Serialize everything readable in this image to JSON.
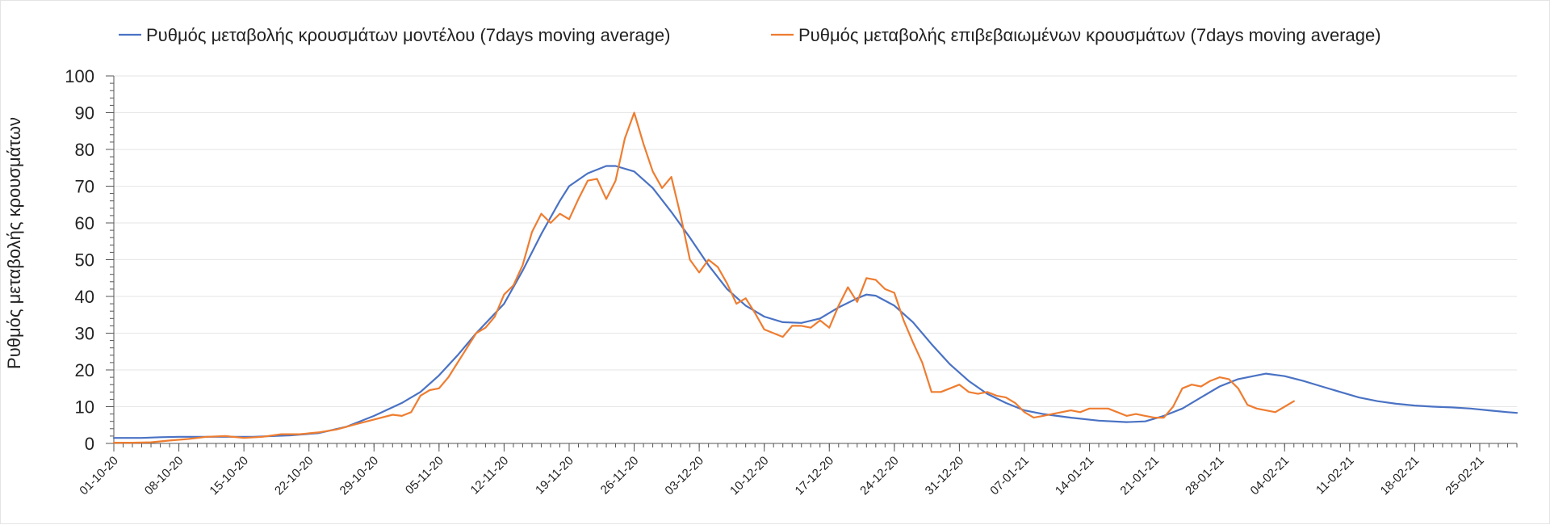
{
  "chart_data": {
    "type": "line",
    "title": "",
    "xlabel": "",
    "ylabel": "Ρυθμός μεταβολής κρουσμάτων",
    "ylim": [
      0,
      100
    ],
    "yticks": [
      0,
      10,
      20,
      30,
      40,
      50,
      60,
      70,
      80,
      90,
      100
    ],
    "grid": true,
    "legend_position": "top",
    "x_start": "2020-10-01",
    "x_end": "2021-03-01",
    "xtick_labels": [
      "01-10-20",
      "08-10-20",
      "15-10-20",
      "22-10-20",
      "29-10-20",
      "05-11-20",
      "12-11-20",
      "19-11-20",
      "26-11-20",
      "03-12-20",
      "10-12-20",
      "17-12-20",
      "24-12-20",
      "31-12-20",
      "07-01-21",
      "14-01-21",
      "21-01-21",
      "28-01-21",
      "04-02-21",
      "11-02-21",
      "18-02-21",
      "25-02-21"
    ],
    "series": [
      {
        "name": "Ρυθμός μεταβολής κρουσμάτων μοντέλου (7days moving average)",
        "color": "#4a72c4",
        "points": [
          [
            "2020-10-01",
            1.5
          ],
          [
            "2020-10-04",
            1.5
          ],
          [
            "2020-10-06",
            1.7
          ],
          [
            "2020-10-08",
            1.8
          ],
          [
            "2020-10-12",
            1.8
          ],
          [
            "2020-10-16",
            1.8
          ],
          [
            "2020-10-20",
            2.2
          ],
          [
            "2020-10-23",
            2.8
          ],
          [
            "2020-10-26",
            4.5
          ],
          [
            "2020-10-29",
            7.5
          ],
          [
            "2020-11-01",
            11.0
          ],
          [
            "2020-11-03",
            14.0
          ],
          [
            "2020-11-05",
            18.5
          ],
          [
            "2020-11-07",
            24.0
          ],
          [
            "2020-11-09",
            30.0
          ],
          [
            "2020-11-12",
            38.0
          ],
          [
            "2020-11-14",
            47.0
          ],
          [
            "2020-11-16",
            57.0
          ],
          [
            "2020-11-18",
            66.0
          ],
          [
            "2020-11-19",
            70.0
          ],
          [
            "2020-11-21",
            73.5
          ],
          [
            "2020-11-23",
            75.5
          ],
          [
            "2020-11-24",
            75.5
          ],
          [
            "2020-11-26",
            74.0
          ],
          [
            "2020-11-28",
            69.5
          ],
          [
            "2020-11-30",
            63.0
          ],
          [
            "2020-12-02",
            56.0
          ],
          [
            "2020-12-04",
            48.5
          ],
          [
            "2020-12-06",
            42.0
          ],
          [
            "2020-12-08",
            37.5
          ],
          [
            "2020-12-10",
            34.5
          ],
          [
            "2020-12-12",
            33.0
          ],
          [
            "2020-12-14",
            32.8
          ],
          [
            "2020-12-16",
            34.0
          ],
          [
            "2020-12-18",
            37.0
          ],
          [
            "2020-12-20",
            39.5
          ],
          [
            "2020-12-21",
            40.5
          ],
          [
            "2020-12-22",
            40.2
          ],
          [
            "2020-12-24",
            37.5
          ],
          [
            "2020-12-26",
            33.0
          ],
          [
            "2020-12-28",
            27.0
          ],
          [
            "2020-12-30",
            21.5
          ],
          [
            "2021-01-01",
            17.0
          ],
          [
            "2021-01-03",
            13.5
          ],
          [
            "2021-01-05",
            11.0
          ],
          [
            "2021-01-07",
            9.0
          ],
          [
            "2021-01-09",
            8.0
          ],
          [
            "2021-01-12",
            7.0
          ],
          [
            "2021-01-15",
            6.2
          ],
          [
            "2021-01-18",
            5.8
          ],
          [
            "2021-01-20",
            6.0
          ],
          [
            "2021-01-22",
            7.5
          ],
          [
            "2021-01-24",
            9.5
          ],
          [
            "2021-01-26",
            12.5
          ],
          [
            "2021-01-28",
            15.5
          ],
          [
            "2021-01-30",
            17.5
          ],
          [
            "2021-02-01",
            18.5
          ],
          [
            "2021-02-02",
            19.0
          ],
          [
            "2021-02-04",
            18.3
          ],
          [
            "2021-02-06",
            17.0
          ],
          [
            "2021-02-08",
            15.5
          ],
          [
            "2021-02-10",
            14.0
          ],
          [
            "2021-02-12",
            12.5
          ],
          [
            "2021-02-14",
            11.5
          ],
          [
            "2021-02-16",
            10.8
          ],
          [
            "2021-02-18",
            10.3
          ],
          [
            "2021-02-20",
            10.0
          ],
          [
            "2021-02-22",
            9.8
          ],
          [
            "2021-02-24",
            9.5
          ],
          [
            "2021-02-26",
            9.0
          ],
          [
            "2021-02-28",
            8.5
          ],
          [
            "2021-03-01",
            8.3
          ]
        ]
      },
      {
        "name": "Ρυθμός μεταβολής επιβεβαιωμένων κρουσμάτων (7days moving average)",
        "color": "#ee7d31",
        "points": [
          [
            "2020-10-01",
            0.2
          ],
          [
            "2020-10-03",
            0.2
          ],
          [
            "2020-10-05",
            0.3
          ],
          [
            "2020-10-07",
            0.8
          ],
          [
            "2020-10-09",
            1.2
          ],
          [
            "2020-10-11",
            1.8
          ],
          [
            "2020-10-13",
            2.0
          ],
          [
            "2020-10-15",
            1.5
          ],
          [
            "2020-10-17",
            1.8
          ],
          [
            "2020-10-19",
            2.5
          ],
          [
            "2020-10-21",
            2.5
          ],
          [
            "2020-10-23",
            3.0
          ],
          [
            "2020-10-25",
            3.8
          ],
          [
            "2020-10-27",
            5.2
          ],
          [
            "2020-10-29",
            6.5
          ],
          [
            "2020-10-31",
            7.8
          ],
          [
            "2020-11-01",
            7.5
          ],
          [
            "2020-11-02",
            8.5
          ],
          [
            "2020-11-03",
            13.0
          ],
          [
            "2020-11-04",
            14.5
          ],
          [
            "2020-11-05",
            15.0
          ],
          [
            "2020-11-06",
            18.0
          ],
          [
            "2020-11-07",
            22.0
          ],
          [
            "2020-11-08",
            26.0
          ],
          [
            "2020-11-09",
            30.0
          ],
          [
            "2020-11-10",
            31.5
          ],
          [
            "2020-11-11",
            34.5
          ],
          [
            "2020-11-12",
            40.5
          ],
          [
            "2020-11-13",
            43.0
          ],
          [
            "2020-11-14",
            48.5
          ],
          [
            "2020-11-15",
            57.5
          ],
          [
            "2020-11-16",
            62.5
          ],
          [
            "2020-11-17",
            60.0
          ],
          [
            "2020-11-18",
            62.5
          ],
          [
            "2020-11-19",
            61.0
          ],
          [
            "2020-11-20",
            66.5
          ],
          [
            "2020-11-21",
            71.5
          ],
          [
            "2020-11-22",
            72.0
          ],
          [
            "2020-11-23",
            66.5
          ],
          [
            "2020-11-24",
            71.5
          ],
          [
            "2020-11-25",
            83.0
          ],
          [
            "2020-11-26",
            90.0
          ],
          [
            "2020-11-27",
            81.5
          ],
          [
            "2020-11-28",
            74.0
          ],
          [
            "2020-11-29",
            69.5
          ],
          [
            "2020-11-30",
            72.5
          ],
          [
            "2020-12-01",
            62.0
          ],
          [
            "2020-12-02",
            50.0
          ],
          [
            "2020-12-03",
            46.5
          ],
          [
            "2020-12-04",
            50.0
          ],
          [
            "2020-12-05",
            48.0
          ],
          [
            "2020-12-06",
            43.5
          ],
          [
            "2020-12-07",
            38.0
          ],
          [
            "2020-12-08",
            39.5
          ],
          [
            "2020-12-09",
            35.5
          ],
          [
            "2020-12-10",
            31.0
          ],
          [
            "2020-12-11",
            30.0
          ],
          [
            "2020-12-12",
            29.0
          ],
          [
            "2020-12-13",
            32.0
          ],
          [
            "2020-12-14",
            32.0
          ],
          [
            "2020-12-15",
            31.5
          ],
          [
            "2020-12-16",
            33.5
          ],
          [
            "2020-12-17",
            31.5
          ],
          [
            "2020-12-18",
            37.5
          ],
          [
            "2020-12-19",
            42.5
          ],
          [
            "2020-12-20",
            38.5
          ],
          [
            "2020-12-21",
            45.0
          ],
          [
            "2020-12-22",
            44.5
          ],
          [
            "2020-12-23",
            42.0
          ],
          [
            "2020-12-24",
            41.0
          ],
          [
            "2020-12-25",
            33.5
          ],
          [
            "2020-12-26",
            27.5
          ],
          [
            "2020-12-27",
            22.0
          ],
          [
            "2020-12-28",
            14.0
          ],
          [
            "2020-12-29",
            14.0
          ],
          [
            "2020-12-30",
            15.0
          ],
          [
            "2020-12-31",
            16.0
          ],
          [
            "2021-01-01",
            14.0
          ],
          [
            "2021-01-02",
            13.5
          ],
          [
            "2021-01-03",
            14.0
          ],
          [
            "2021-01-04",
            13.0
          ],
          [
            "2021-01-05",
            12.5
          ],
          [
            "2021-01-06",
            11.0
          ],
          [
            "2021-01-07",
            8.5
          ],
          [
            "2021-01-08",
            7.0
          ],
          [
            "2021-01-09",
            7.5
          ],
          [
            "2021-01-10",
            8.0
          ],
          [
            "2021-01-11",
            8.5
          ],
          [
            "2021-01-12",
            9.0
          ],
          [
            "2021-01-13",
            8.5
          ],
          [
            "2021-01-14",
            9.5
          ],
          [
            "2021-01-15",
            9.5
          ],
          [
            "2021-01-16",
            9.5
          ],
          [
            "2021-01-17",
            8.5
          ],
          [
            "2021-01-18",
            7.5
          ],
          [
            "2021-01-19",
            8.0
          ],
          [
            "2021-01-20",
            7.5
          ],
          [
            "2021-01-21",
            7.0
          ],
          [
            "2021-01-22",
            7.0
          ],
          [
            "2021-01-23",
            10.0
          ],
          [
            "2021-01-24",
            15.0
          ],
          [
            "2021-01-25",
            16.0
          ],
          [
            "2021-01-26",
            15.5
          ],
          [
            "2021-01-27",
            17.0
          ],
          [
            "2021-01-28",
            18.0
          ],
          [
            "2021-01-29",
            17.5
          ],
          [
            "2021-01-30",
            15.0
          ],
          [
            "2021-01-31",
            10.5
          ],
          [
            "2021-02-01",
            9.5
          ],
          [
            "2021-02-02",
            9.0
          ],
          [
            "2021-02-03",
            8.5
          ],
          [
            "2021-02-04",
            10.0
          ],
          [
            "2021-02-05",
            11.5
          ]
        ]
      }
    ]
  }
}
